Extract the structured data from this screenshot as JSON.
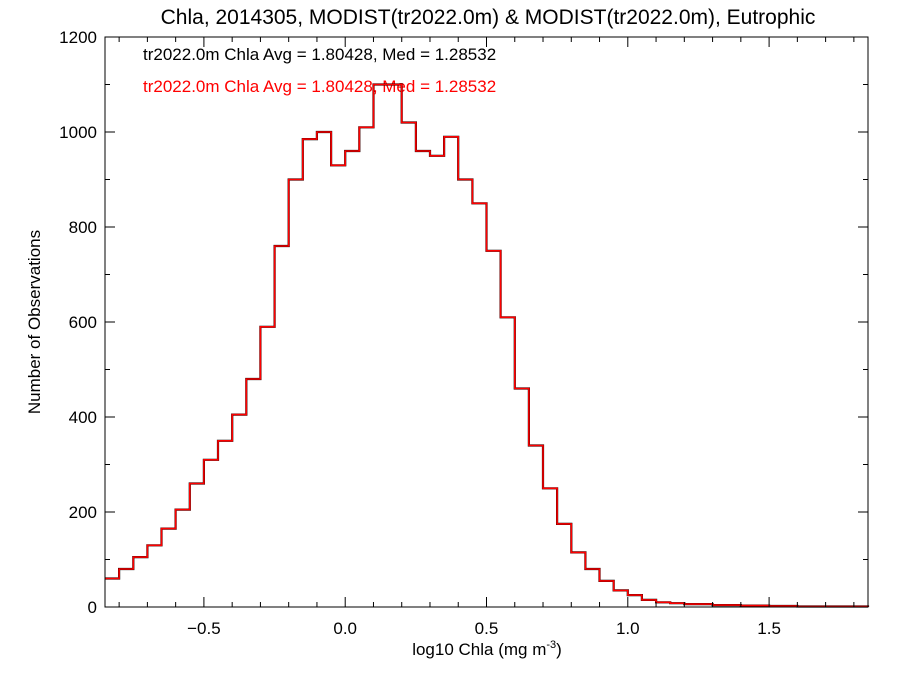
{
  "chart_data": {
    "type": "step-histogram",
    "title": "Chla, 2014305, MODIST(tr2022.0m) & MODIST(tr2022.0m), Eutrophic",
    "xlabel_main": "log10 Chla (mg m",
    "xlabel_sup": "-3",
    "xlabel_close": ")",
    "ylabel": "Number of Observations",
    "xlim": [
      -0.85,
      1.85
    ],
    "ylim": [
      0,
      1200
    ],
    "xticks": [
      -0.5,
      0.0,
      0.5,
      1.0,
      1.5
    ],
    "xtick_labels": [
      "−0.5",
      "0.0",
      "0.5",
      "1.0",
      "1.5"
    ],
    "yticks": [
      0,
      200,
      400,
      600,
      800,
      1000,
      1200
    ],
    "ytick_labels": [
      "0",
      "200",
      "400",
      "600",
      "800",
      "1000",
      "1200"
    ],
    "annotations": [
      {
        "text": "tr2022.0m Chla Avg = 1.80428, Med = 1.28532",
        "color": "#000000"
      },
      {
        "text": "tr2022.0m Chla Avg = 1.80428, Med = 1.28532",
        "color": "#ff0000"
      }
    ],
    "series": [
      {
        "color": "#000000",
        "x": [
          -0.85,
          -0.8,
          -0.75,
          -0.7,
          -0.65,
          -0.6,
          -0.55,
          -0.5,
          -0.45,
          -0.4,
          -0.35,
          -0.3,
          -0.25,
          -0.2,
          -0.15,
          -0.1,
          -0.05,
          0.0,
          0.05,
          0.1,
          0.15,
          0.2,
          0.25,
          0.3,
          0.35,
          0.4,
          0.45,
          0.5,
          0.55,
          0.6,
          0.65,
          0.7,
          0.75,
          0.8,
          0.85,
          0.9,
          0.95,
          1.0,
          1.05,
          1.1,
          1.15,
          1.2,
          1.3,
          1.4,
          1.5,
          1.6,
          1.7,
          1.85
        ],
        "y": [
          60,
          80,
          105,
          130,
          165,
          205,
          260,
          310,
          350,
          405,
          480,
          590,
          760,
          900,
          985,
          1000,
          930,
          960,
          1010,
          1100,
          1100,
          1020,
          960,
          950,
          990,
          900,
          850,
          750,
          610,
          460,
          340,
          250,
          175,
          115,
          80,
          55,
          35,
          25,
          15,
          10,
          8,
          6,
          4,
          3,
          2,
          1,
          1,
          0
        ]
      },
      {
        "color": "#ff0000",
        "x": [
          -0.85,
          -0.8,
          -0.75,
          -0.7,
          -0.65,
          -0.6,
          -0.55,
          -0.5,
          -0.45,
          -0.4,
          -0.35,
          -0.3,
          -0.25,
          -0.2,
          -0.15,
          -0.1,
          -0.05,
          0.0,
          0.05,
          0.1,
          0.15,
          0.2,
          0.25,
          0.3,
          0.35,
          0.4,
          0.45,
          0.5,
          0.55,
          0.6,
          0.65,
          0.7,
          0.75,
          0.8,
          0.85,
          0.9,
          0.95,
          1.0,
          1.05,
          1.1,
          1.15,
          1.2,
          1.3,
          1.4,
          1.5,
          1.6,
          1.7,
          1.85
        ],
        "y": [
          60,
          80,
          105,
          130,
          165,
          205,
          260,
          310,
          350,
          405,
          480,
          590,
          760,
          900,
          985,
          1000,
          930,
          960,
          1010,
          1100,
          1100,
          1020,
          960,
          950,
          990,
          900,
          850,
          750,
          610,
          460,
          340,
          250,
          175,
          115,
          80,
          55,
          35,
          25,
          15,
          10,
          8,
          6,
          4,
          3,
          2,
          1,
          1,
          0
        ]
      }
    ]
  }
}
